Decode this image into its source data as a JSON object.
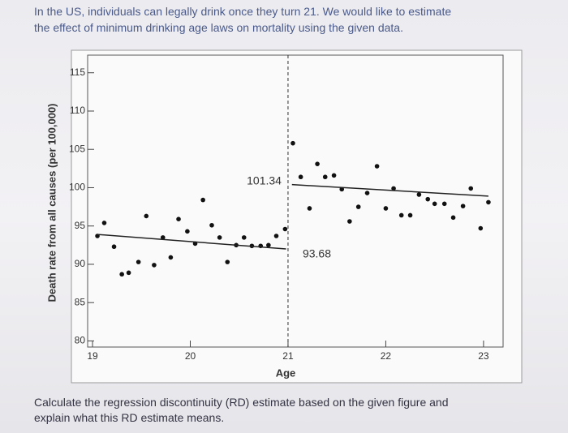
{
  "question": [
    "In the US, individuals can legally drink once they turn 21. We would like to estimate",
    "the effect of minimum drinking age laws on mortality using the given data."
  ],
  "instruction": [
    "Calculate the regression discontinuity (RD) estimate based on the given figure and",
    "explain what this RD estimate means."
  ],
  "chart_data": {
    "type": "scatter",
    "x_label": "Age",
    "y_label": "Death rate from all causes (per 100,000)",
    "xlim": [
      18.95,
      23.2
    ],
    "ylim": [
      79.2,
      117.3
    ],
    "xticks": [
      19,
      20,
      21,
      22,
      23
    ],
    "yticks": [
      80,
      85,
      90,
      95,
      100,
      105,
      110,
      115
    ],
    "color": "#111",
    "x": [
      19.05,
      19.12,
      19.22,
      19.3,
      19.37,
      19.47,
      19.55,
      19.63,
      19.72,
      19.8,
      19.88,
      19.97,
      20.05,
      20.13,
      20.22,
      20.3,
      20.38,
      20.47,
      20.55,
      20.63,
      20.72,
      20.8,
      20.88,
      20.97,
      21.05,
      21.13,
      21.22,
      21.3,
      21.38,
      21.47,
      21.55,
      21.63,
      21.72,
      21.81,
      21.91,
      22.0,
      22.08,
      22.16,
      22.25,
      22.34,
      22.43,
      22.5,
      22.6,
      22.69,
      22.79,
      22.87,
      22.97,
      23.05
    ],
    "values": [
      93.7,
      95.4,
      92.3,
      88.7,
      88.9,
      90.3,
      96.3,
      89.9,
      93.5,
      90.9,
      95.9,
      94.3,
      92.7,
      98.4,
      95.1,
      93.5,
      90.3,
      92.5,
      93.5,
      92.4,
      92.4,
      92.5,
      93.7,
      94.6,
      105.8,
      101.4,
      97.3,
      103.1,
      101.4,
      101.6,
      99.8,
      95.6,
      97.5,
      99.3,
      102.8,
      97.3,
      99.9,
      96.4,
      96.4,
      99.1,
      98.5,
      97.9,
      97.9,
      96.1,
      97.6,
      99.9,
      94.7,
      98.1
    ],
    "cutoff": 21,
    "fit_lines": [
      {
        "x": [
          19.05,
          20.98
        ],
        "y": [
          93.9,
          92.0
        ]
      },
      {
        "x": [
          21.04,
          23.05
        ],
        "y": [
          100.4,
          98.9
        ]
      }
    ],
    "annotations": [
      "101.34",
      "93.68"
    ]
  }
}
